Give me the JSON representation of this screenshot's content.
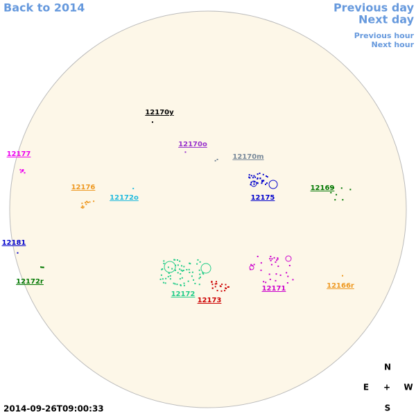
{
  "navigation": {
    "back": "Back to 2014",
    "previous_day": "Previous day",
    "next_day": "Next day",
    "previous_hour": "Previous hour",
    "next_hour": "Next hour"
  },
  "regions": [
    {
      "label": "12170y",
      "color": "#000000"
    },
    {
      "label": "12170o",
      "color": "#9933cc"
    },
    {
      "label": "12170m",
      "color": "#778899"
    },
    {
      "label": "12177",
      "color": "#ee00ee"
    },
    {
      "label": "12176",
      "color": "#ee9922"
    },
    {
      "label": "12172o",
      "color": "#22bbdd"
    },
    {
      "label": "12175",
      "color": "#0000cc"
    },
    {
      "label": "12169",
      "color": "#007700"
    },
    {
      "label": "12181",
      "color": "#0000cc"
    },
    {
      "label": "12172r",
      "color": "#007700"
    },
    {
      "label": "12172",
      "color": "#22cc88"
    },
    {
      "label": "12173",
      "color": "#cc0000"
    },
    {
      "label": "12171",
      "color": "#cc00cc"
    },
    {
      "label": "12166r",
      "color": "#ee9922"
    }
  ],
  "compass": {
    "north": "N",
    "east": "E",
    "center": "+",
    "west": "W",
    "south": "S"
  },
  "timestamp": "2014-09-26T09:00:33"
}
